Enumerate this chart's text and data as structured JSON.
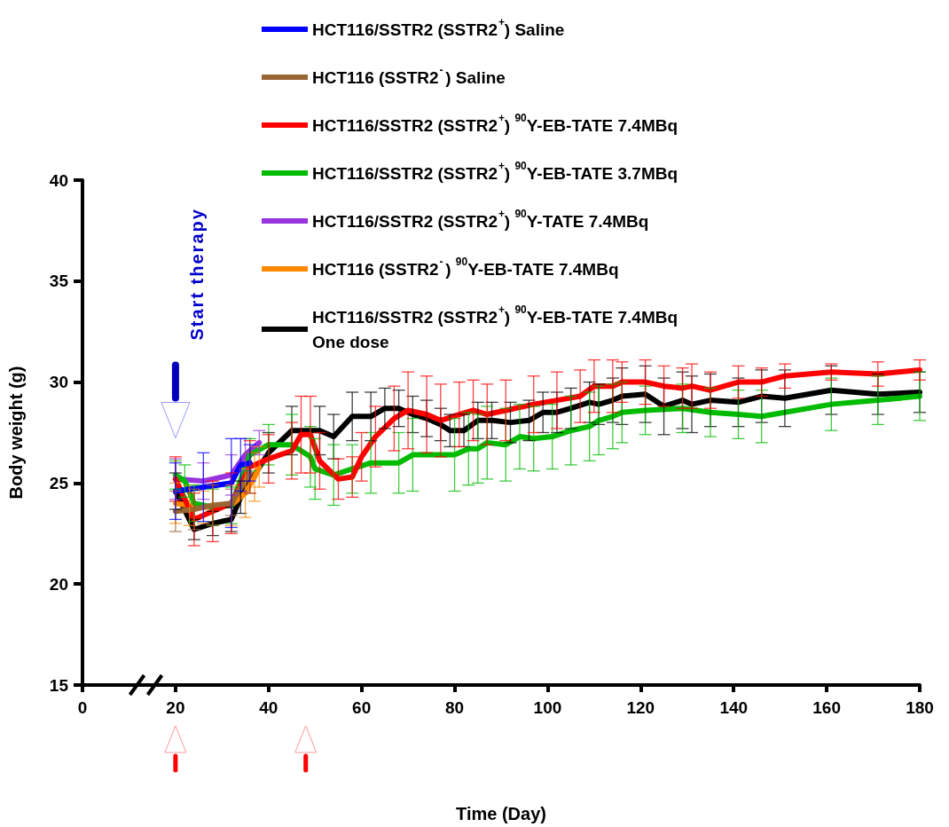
{
  "chart_data": {
    "type": "line",
    "xlabel": "Time (Day)",
    "ylabel": "Body weight (g)",
    "xlim": [
      0,
      180
    ],
    "xticks": [
      0,
      20,
      40,
      60,
      80,
      100,
      120,
      140,
      160,
      180
    ],
    "ylim": [
      15,
      40
    ],
    "yticks": [
      15,
      20,
      25,
      30,
      35,
      40
    ],
    "legend": "top right",
    "marker": "none",
    "line_style": "solid",
    "annotations": [
      "Start therapy"
    ],
    "series": [
      {
        "name": "HCT116/SSTR2 (SSTR2$^{+}$) Saline",
        "color": "#0000ff",
        "x": [
          20,
          26,
          32,
          34,
          36
        ],
        "values": [
          24.6,
          24.8,
          25.0,
          25.9,
          26.0
        ],
        "errors": [
          1.4,
          1.7,
          2.2,
          1.3,
          0.9
        ]
      },
      {
        "name": "HCT116 (SSTR2$^{-}$) Saline",
        "color": "#996633",
        "x": [
          20,
          24,
          28,
          32,
          36
        ],
        "values": [
          23.6,
          23.7,
          23.9,
          24.0,
          25.5
        ],
        "errors": [
          1.0,
          1.0,
          1.0,
          [
            23.4,
            24.7
          ],
          1.0
        ]
      },
      {
        "name": "HCT116/SSTR2 (SSTR2$^{+}$) $^{90}$Y-EB-TATE 7.4MBq",
        "color": "#ff0000",
        "x": [
          20,
          24,
          28,
          32,
          36,
          40,
          45,
          47,
          49,
          51,
          55,
          58,
          60,
          63,
          67,
          70,
          74,
          77,
          81,
          84,
          87,
          91,
          97,
          102,
          107,
          110,
          114,
          116,
          121,
          125,
          129,
          131,
          135,
          141,
          146,
          151,
          161,
          171,
          180
        ],
        "values": [
          25.2,
          23.2,
          23.6,
          24.0,
          25.8,
          26.2,
          26.6,
          27.4,
          27.4,
          26.1,
          25.2,
          25.3,
          26.3,
          27.3,
          28.2,
          28.6,
          28.4,
          28.1,
          28.4,
          28.6,
          28.4,
          28.6,
          28.9,
          29.1,
          29.3,
          29.8,
          29.8,
          30.0,
          30.0,
          29.8,
          29.7,
          29.8,
          29.6,
          30.0,
          30.0,
          30.3,
          30.5,
          30.4,
          30.6
        ],
        "errors": [
          1.1,
          1.3,
          1.5,
          1.5,
          1.3,
          1.2,
          1.4,
          1.9,
          1.9,
          1.4,
          1.0,
          1.0,
          1.2,
          1.5,
          1.6,
          1.9,
          1.9,
          1.8,
          1.6,
          1.5,
          1.5,
          1.5,
          1.4,
          1.4,
          1.3,
          1.3,
          1.3,
          1.0,
          1.1,
          1.0,
          1.0,
          1.1,
          0.9,
          0.8,
          0.7,
          0.6,
          0.4,
          0.6,
          0.5
        ]
      },
      {
        "name": "HCT116/SSTR2 (SSTR2$^{+}$) $^{90}$Y-EB-TATE 3.7MBq",
        "color": "#00bb00",
        "x": [
          20,
          22,
          24,
          28,
          32,
          36,
          40,
          45,
          49,
          50,
          54,
          58,
          62,
          68,
          71,
          80,
          83,
          85,
          87,
          91,
          94,
          97,
          101,
          105,
          109,
          111,
          114,
          116,
          121,
          129,
          135,
          141,
          146,
          161,
          171,
          180
        ],
        "values": [
          25.4,
          25.1,
          24.0,
          23.8,
          23.9,
          26.4,
          26.9,
          26.9,
          26.3,
          25.7,
          25.4,
          25.7,
          26.0,
          26.0,
          26.4,
          26.4,
          26.7,
          26.7,
          27.0,
          26.9,
          27.3,
          27.2,
          27.3,
          27.6,
          27.8,
          28.1,
          28.3,
          28.5,
          28.6,
          28.7,
          28.5,
          28.4,
          28.3,
          28.9,
          29.1,
          29.3
        ],
        "errors": [
          0.7,
          0.8,
          0.9,
          0.9,
          0.9,
          0.8,
          1.0,
          1.5,
          1.5,
          1.5,
          1.5,
          1.2,
          1.5,
          1.5,
          1.8,
          1.8,
          1.8,
          1.7,
          1.8,
          1.8,
          1.6,
          1.6,
          1.6,
          1.7,
          1.7,
          1.7,
          1.6,
          1.5,
          1.2,
          1.2,
          1.2,
          1.2,
          1.3,
          1.3,
          1.2,
          1.2
        ]
      },
      {
        "name": "HCT116/SSTR2 (SSTR2$^{+}$) $^{90}$Y-TATE 7.4MBq",
        "color": "#9933dd",
        "x": [
          20,
          26,
          32,
          35,
          38
        ],
        "values": [
          25.2,
          25.1,
          25.4,
          26.4,
          27.0
        ],
        "errors": [
          1.0,
          0.9,
          1.0,
          0.8,
          0.6
        ]
      },
      {
        "name": "HCT116 (SSTR2$^{-}$) $^{90}$Y-EB-TATE 7.4MBq",
        "color": "#ff8800",
        "x": [
          20,
          23,
          26,
          32,
          35,
          37,
          38
        ],
        "values": [
          24.0,
          23.9,
          23.8,
          23.9,
          24.5,
          25.3,
          25.8
        ],
        "errors": [
          1.0,
          1.0,
          0.8,
          1.0,
          1.2,
          1.2,
          1.0
        ]
      },
      {
        "name": "HCT116/SSTR2 (SSTR2$^{+}$) $^{90}$Y-EB-TATE 7.4MBq One dose",
        "color": "#000000",
        "x": [
          20,
          24,
          28,
          32,
          34,
          40,
          45,
          51,
          54,
          58,
          62,
          65,
          68,
          71,
          74,
          77,
          79,
          82,
          85,
          88,
          92,
          96,
          99,
          102,
          105,
          109,
          111,
          114,
          116,
          121,
          125,
          129,
          131,
          135,
          141,
          146,
          151,
          161,
          171,
          180
        ],
        "values": [
          24.6,
          22.7,
          23.0,
          23.2,
          24.3,
          26.5,
          27.6,
          27.6,
          27.3,
          28.3,
          28.3,
          28.7,
          28.7,
          28.4,
          28.2,
          27.9,
          27.6,
          27.6,
          28.1,
          28.1,
          28.0,
          28.1,
          28.5,
          28.5,
          28.7,
          29.0,
          28.9,
          29.1,
          29.3,
          29.4,
          28.8,
          29.1,
          28.9,
          29.1,
          29.0,
          29.3,
          29.2,
          29.6,
          29.4,
          29.5
        ],
        "errors": [
          0.9,
          0.5,
          0.6,
          0.6,
          0.8,
          1.0,
          1.2,
          1.2,
          1.1,
          1.2,
          1.2,
          1.0,
          0.9,
          0.9,
          0.9,
          0.8,
          0.8,
          0.8,
          0.9,
          0.9,
          1.0,
          1.0,
          1.0,
          1.0,
          1.0,
          1.0,
          1.0,
          1.1,
          1.4,
          1.4,
          1.4,
          1.4,
          1.4,
          1.3,
          1.2,
          1.3,
          1.4,
          1.2,
          1.0,
          1.0
        ]
      }
    ]
  }
}
